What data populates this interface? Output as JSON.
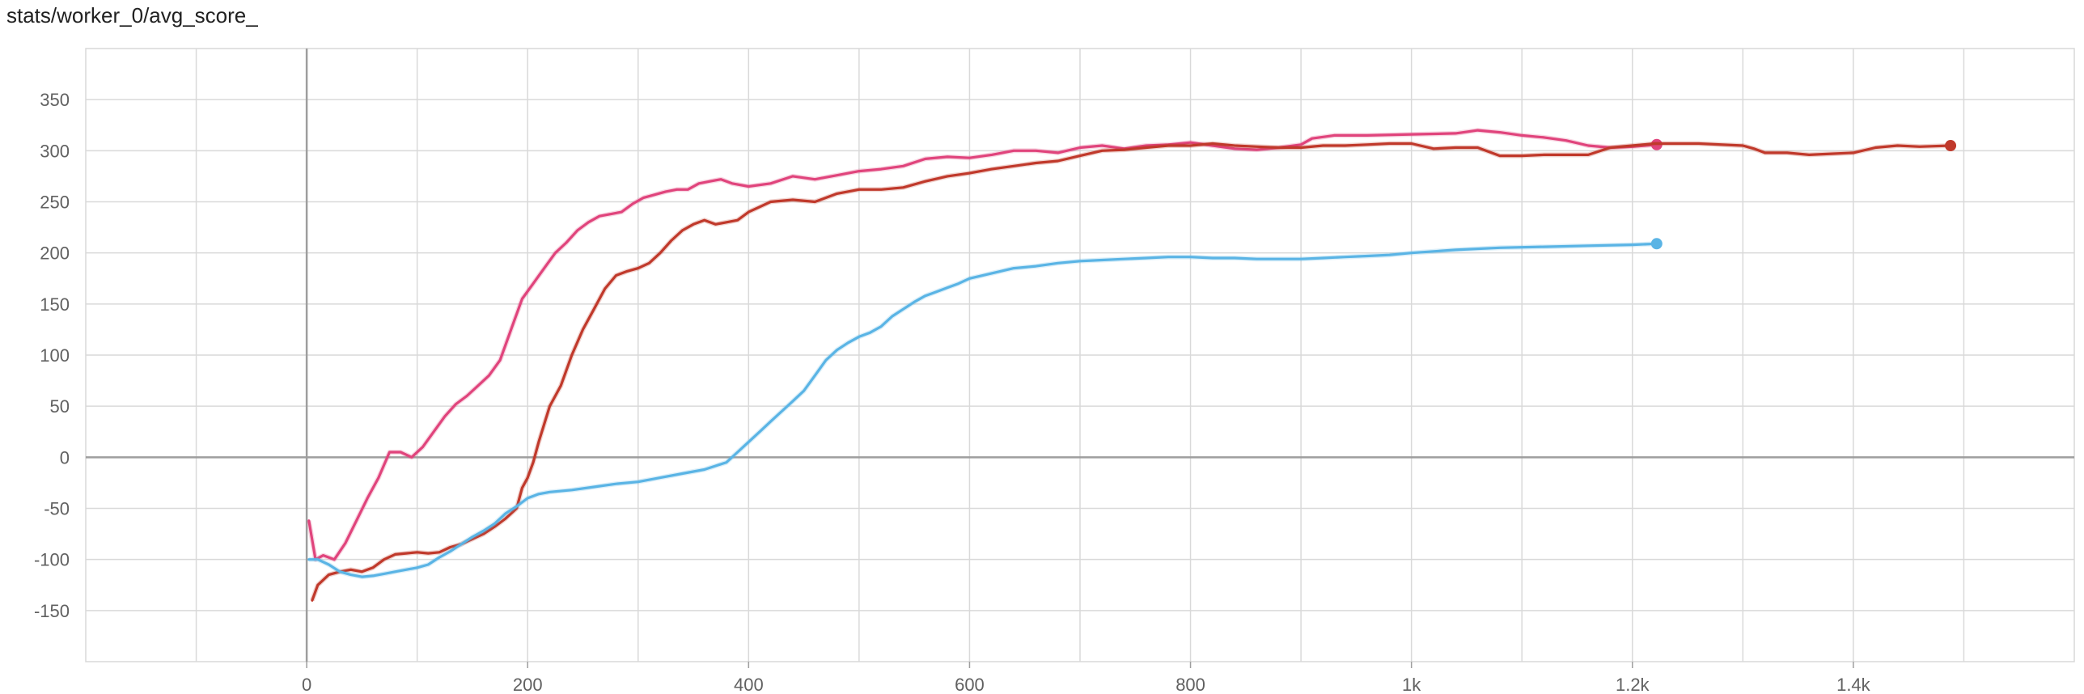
{
  "chart_title": "stats/worker_0/avg_score_",
  "colors": {
    "pink": "#e0447c",
    "red": "#c0392b",
    "blue": "#5ab4e5",
    "grid": "#d9d9d9",
    "zero_axis": "#9e9e9e"
  },
  "chart_data": {
    "type": "line",
    "title": "stats/worker_0/avg_score_",
    "xlabel": "",
    "ylabel": "",
    "xlim": [
      -200,
      1600
    ],
    "ylim": [
      -200,
      400
    ],
    "x_ticks": [
      {
        "value": 0,
        "label": "0"
      },
      {
        "value": 200,
        "label": "200"
      },
      {
        "value": 400,
        "label": "400"
      },
      {
        "value": 600,
        "label": "600"
      },
      {
        "value": 800,
        "label": "800"
      },
      {
        "value": 1000,
        "label": "1k"
      },
      {
        "value": 1200,
        "label": "1.2k"
      },
      {
        "value": 1400,
        "label": "1.4k"
      }
    ],
    "y_ticks": [
      {
        "value": 350,
        "label": "350"
      },
      {
        "value": 300,
        "label": "300"
      },
      {
        "value": 250,
        "label": "250"
      },
      {
        "value": 200,
        "label": "200"
      },
      {
        "value": 150,
        "label": "150"
      },
      {
        "value": 100,
        "label": "100"
      },
      {
        "value": 50,
        "label": "50"
      },
      {
        "value": 0,
        "label": "0"
      },
      {
        "value": -50,
        "label": "-50"
      },
      {
        "value": -100,
        "label": "-100"
      },
      {
        "value": -150,
        "label": "-150"
      }
    ],
    "grid": true,
    "legend": "none",
    "series": [
      {
        "color": "#e0447c",
        "end_marker": true,
        "points": [
          [
            2,
            -62
          ],
          [
            8,
            -100
          ],
          [
            15,
            -96
          ],
          [
            25,
            -100
          ],
          [
            35,
            -84
          ],
          [
            45,
            -62
          ],
          [
            55,
            -40
          ],
          [
            65,
            -20
          ],
          [
            75,
            5
          ],
          [
            85,
            5
          ],
          [
            95,
            0
          ],
          [
            105,
            10
          ],
          [
            115,
            25
          ],
          [
            125,
            40
          ],
          [
            135,
            52
          ],
          [
            145,
            60
          ],
          [
            155,
            70
          ],
          [
            165,
            80
          ],
          [
            175,
            95
          ],
          [
            185,
            125
          ],
          [
            195,
            155
          ],
          [
            205,
            170
          ],
          [
            215,
            185
          ],
          [
            225,
            200
          ],
          [
            235,
            210
          ],
          [
            245,
            222
          ],
          [
            255,
            230
          ],
          [
            265,
            236
          ],
          [
            275,
            238
          ],
          [
            285,
            240
          ],
          [
            295,
            248
          ],
          [
            305,
            254
          ],
          [
            315,
            257
          ],
          [
            325,
            260
          ],
          [
            335,
            262
          ],
          [
            345,
            262
          ],
          [
            355,
            268
          ],
          [
            365,
            270
          ],
          [
            375,
            272
          ],
          [
            385,
            268
          ],
          [
            400,
            265
          ],
          [
            420,
            268
          ],
          [
            440,
            275
          ],
          [
            460,
            272
          ],
          [
            480,
            276
          ],
          [
            500,
            280
          ],
          [
            520,
            282
          ],
          [
            540,
            285
          ],
          [
            560,
            292
          ],
          [
            580,
            294
          ],
          [
            600,
            293
          ],
          [
            620,
            296
          ],
          [
            640,
            300
          ],
          [
            660,
            300
          ],
          [
            680,
            298
          ],
          [
            700,
            303
          ],
          [
            720,
            305
          ],
          [
            740,
            302
          ],
          [
            760,
            305
          ],
          [
            780,
            306
          ],
          [
            800,
            308
          ],
          [
            820,
            305
          ],
          [
            840,
            302
          ],
          [
            860,
            301
          ],
          [
            880,
            303
          ],
          [
            900,
            306
          ],
          [
            910,
            312
          ],
          [
            930,
            315
          ],
          [
            960,
            315
          ],
          [
            1000,
            316
          ],
          [
            1040,
            317
          ],
          [
            1060,
            320
          ],
          [
            1080,
            318
          ],
          [
            1100,
            315
          ],
          [
            1120,
            313
          ],
          [
            1140,
            310
          ],
          [
            1160,
            305
          ],
          [
            1180,
            303
          ],
          [
            1200,
            304
          ],
          [
            1222,
            306
          ]
        ]
      },
      {
        "color": "#c0392b",
        "end_marker": true,
        "points": [
          [
            5,
            -140
          ],
          [
            10,
            -125
          ],
          [
            20,
            -115
          ],
          [
            30,
            -112
          ],
          [
            40,
            -110
          ],
          [
            50,
            -112
          ],
          [
            60,
            -108
          ],
          [
            70,
            -100
          ],
          [
            80,
            -95
          ],
          [
            90,
            -94
          ],
          [
            100,
            -93
          ],
          [
            110,
            -94
          ],
          [
            120,
            -93
          ],
          [
            130,
            -88
          ],
          [
            140,
            -85
          ],
          [
            150,
            -80
          ],
          [
            160,
            -75
          ],
          [
            170,
            -68
          ],
          [
            180,
            -60
          ],
          [
            190,
            -50
          ],
          [
            195,
            -30
          ],
          [
            200,
            -20
          ],
          [
            205,
            -5
          ],
          [
            210,
            15
          ],
          [
            220,
            50
          ],
          [
            230,
            70
          ],
          [
            240,
            100
          ],
          [
            250,
            125
          ],
          [
            260,
            145
          ],
          [
            270,
            165
          ],
          [
            280,
            178
          ],
          [
            290,
            182
          ],
          [
            300,
            185
          ],
          [
            310,
            190
          ],
          [
            320,
            200
          ],
          [
            330,
            212
          ],
          [
            340,
            222
          ],
          [
            350,
            228
          ],
          [
            360,
            232
          ],
          [
            370,
            228
          ],
          [
            380,
            230
          ],
          [
            390,
            232
          ],
          [
            400,
            240
          ],
          [
            410,
            245
          ],
          [
            420,
            250
          ],
          [
            440,
            252
          ],
          [
            460,
            250
          ],
          [
            480,
            258
          ],
          [
            500,
            262
          ],
          [
            520,
            262
          ],
          [
            540,
            264
          ],
          [
            560,
            270
          ],
          [
            580,
            275
          ],
          [
            600,
            278
          ],
          [
            620,
            282
          ],
          [
            640,
            285
          ],
          [
            660,
            288
          ],
          [
            680,
            290
          ],
          [
            700,
            295
          ],
          [
            720,
            300
          ],
          [
            740,
            301
          ],
          [
            760,
            303
          ],
          [
            780,
            305
          ],
          [
            800,
            305
          ],
          [
            820,
            307
          ],
          [
            840,
            305
          ],
          [
            860,
            304
          ],
          [
            880,
            303
          ],
          [
            900,
            303
          ],
          [
            920,
            305
          ],
          [
            940,
            305
          ],
          [
            960,
            306
          ],
          [
            980,
            307
          ],
          [
            1000,
            307
          ],
          [
            1020,
            302
          ],
          [
            1040,
            303
          ],
          [
            1060,
            303
          ],
          [
            1080,
            295
          ],
          [
            1100,
            295
          ],
          [
            1120,
            296
          ],
          [
            1140,
            296
          ],
          [
            1160,
            296
          ],
          [
            1180,
            303
          ],
          [
            1200,
            305
          ],
          [
            1220,
            307
          ],
          [
            1260,
            307
          ],
          [
            1300,
            305
          ],
          [
            1310,
            302
          ],
          [
            1320,
            298
          ],
          [
            1340,
            298
          ],
          [
            1360,
            296
          ],
          [
            1380,
            297
          ],
          [
            1400,
            298
          ],
          [
            1420,
            303
          ],
          [
            1440,
            305
          ],
          [
            1460,
            304
          ],
          [
            1488,
            305
          ]
        ]
      },
      {
        "color": "#5ab4e5",
        "end_marker": true,
        "points": [
          [
            2,
            -100
          ],
          [
            10,
            -100
          ],
          [
            20,
            -105
          ],
          [
            30,
            -112
          ],
          [
            40,
            -115
          ],
          [
            50,
            -117
          ],
          [
            60,
            -116
          ],
          [
            70,
            -114
          ],
          [
            80,
            -112
          ],
          [
            90,
            -110
          ],
          [
            100,
            -108
          ],
          [
            110,
            -105
          ],
          [
            120,
            -98
          ],
          [
            130,
            -92
          ],
          [
            140,
            -85
          ],
          [
            150,
            -78
          ],
          [
            160,
            -72
          ],
          [
            170,
            -65
          ],
          [
            180,
            -55
          ],
          [
            190,
            -48
          ],
          [
            200,
            -40
          ],
          [
            210,
            -36
          ],
          [
            220,
            -34
          ],
          [
            240,
            -32
          ],
          [
            260,
            -29
          ],
          [
            280,
            -26
          ],
          [
            300,
            -24
          ],
          [
            320,
            -20
          ],
          [
            340,
            -16
          ],
          [
            360,
            -12
          ],
          [
            380,
            -5
          ],
          [
            390,
            5
          ],
          [
            400,
            15
          ],
          [
            410,
            25
          ],
          [
            420,
            35
          ],
          [
            430,
            45
          ],
          [
            440,
            55
          ],
          [
            450,
            65
          ],
          [
            460,
            80
          ],
          [
            470,
            95
          ],
          [
            480,
            105
          ],
          [
            490,
            112
          ],
          [
            500,
            118
          ],
          [
            510,
            122
          ],
          [
            520,
            128
          ],
          [
            530,
            138
          ],
          [
            540,
            145
          ],
          [
            550,
            152
          ],
          [
            560,
            158
          ],
          [
            570,
            162
          ],
          [
            580,
            166
          ],
          [
            590,
            170
          ],
          [
            600,
            175
          ],
          [
            620,
            180
          ],
          [
            640,
            185
          ],
          [
            660,
            187
          ],
          [
            680,
            190
          ],
          [
            700,
            192
          ],
          [
            720,
            193
          ],
          [
            740,
            194
          ],
          [
            760,
            195
          ],
          [
            780,
            196
          ],
          [
            800,
            196
          ],
          [
            820,
            195
          ],
          [
            840,
            195
          ],
          [
            860,
            194
          ],
          [
            880,
            194
          ],
          [
            900,
            194
          ],
          [
            920,
            195
          ],
          [
            940,
            196
          ],
          [
            960,
            197
          ],
          [
            980,
            198
          ],
          [
            1000,
            200
          ],
          [
            1040,
            203
          ],
          [
            1080,
            205
          ],
          [
            1120,
            206
          ],
          [
            1160,
            207
          ],
          [
            1200,
            208
          ],
          [
            1222,
            209
          ]
        ]
      }
    ]
  }
}
